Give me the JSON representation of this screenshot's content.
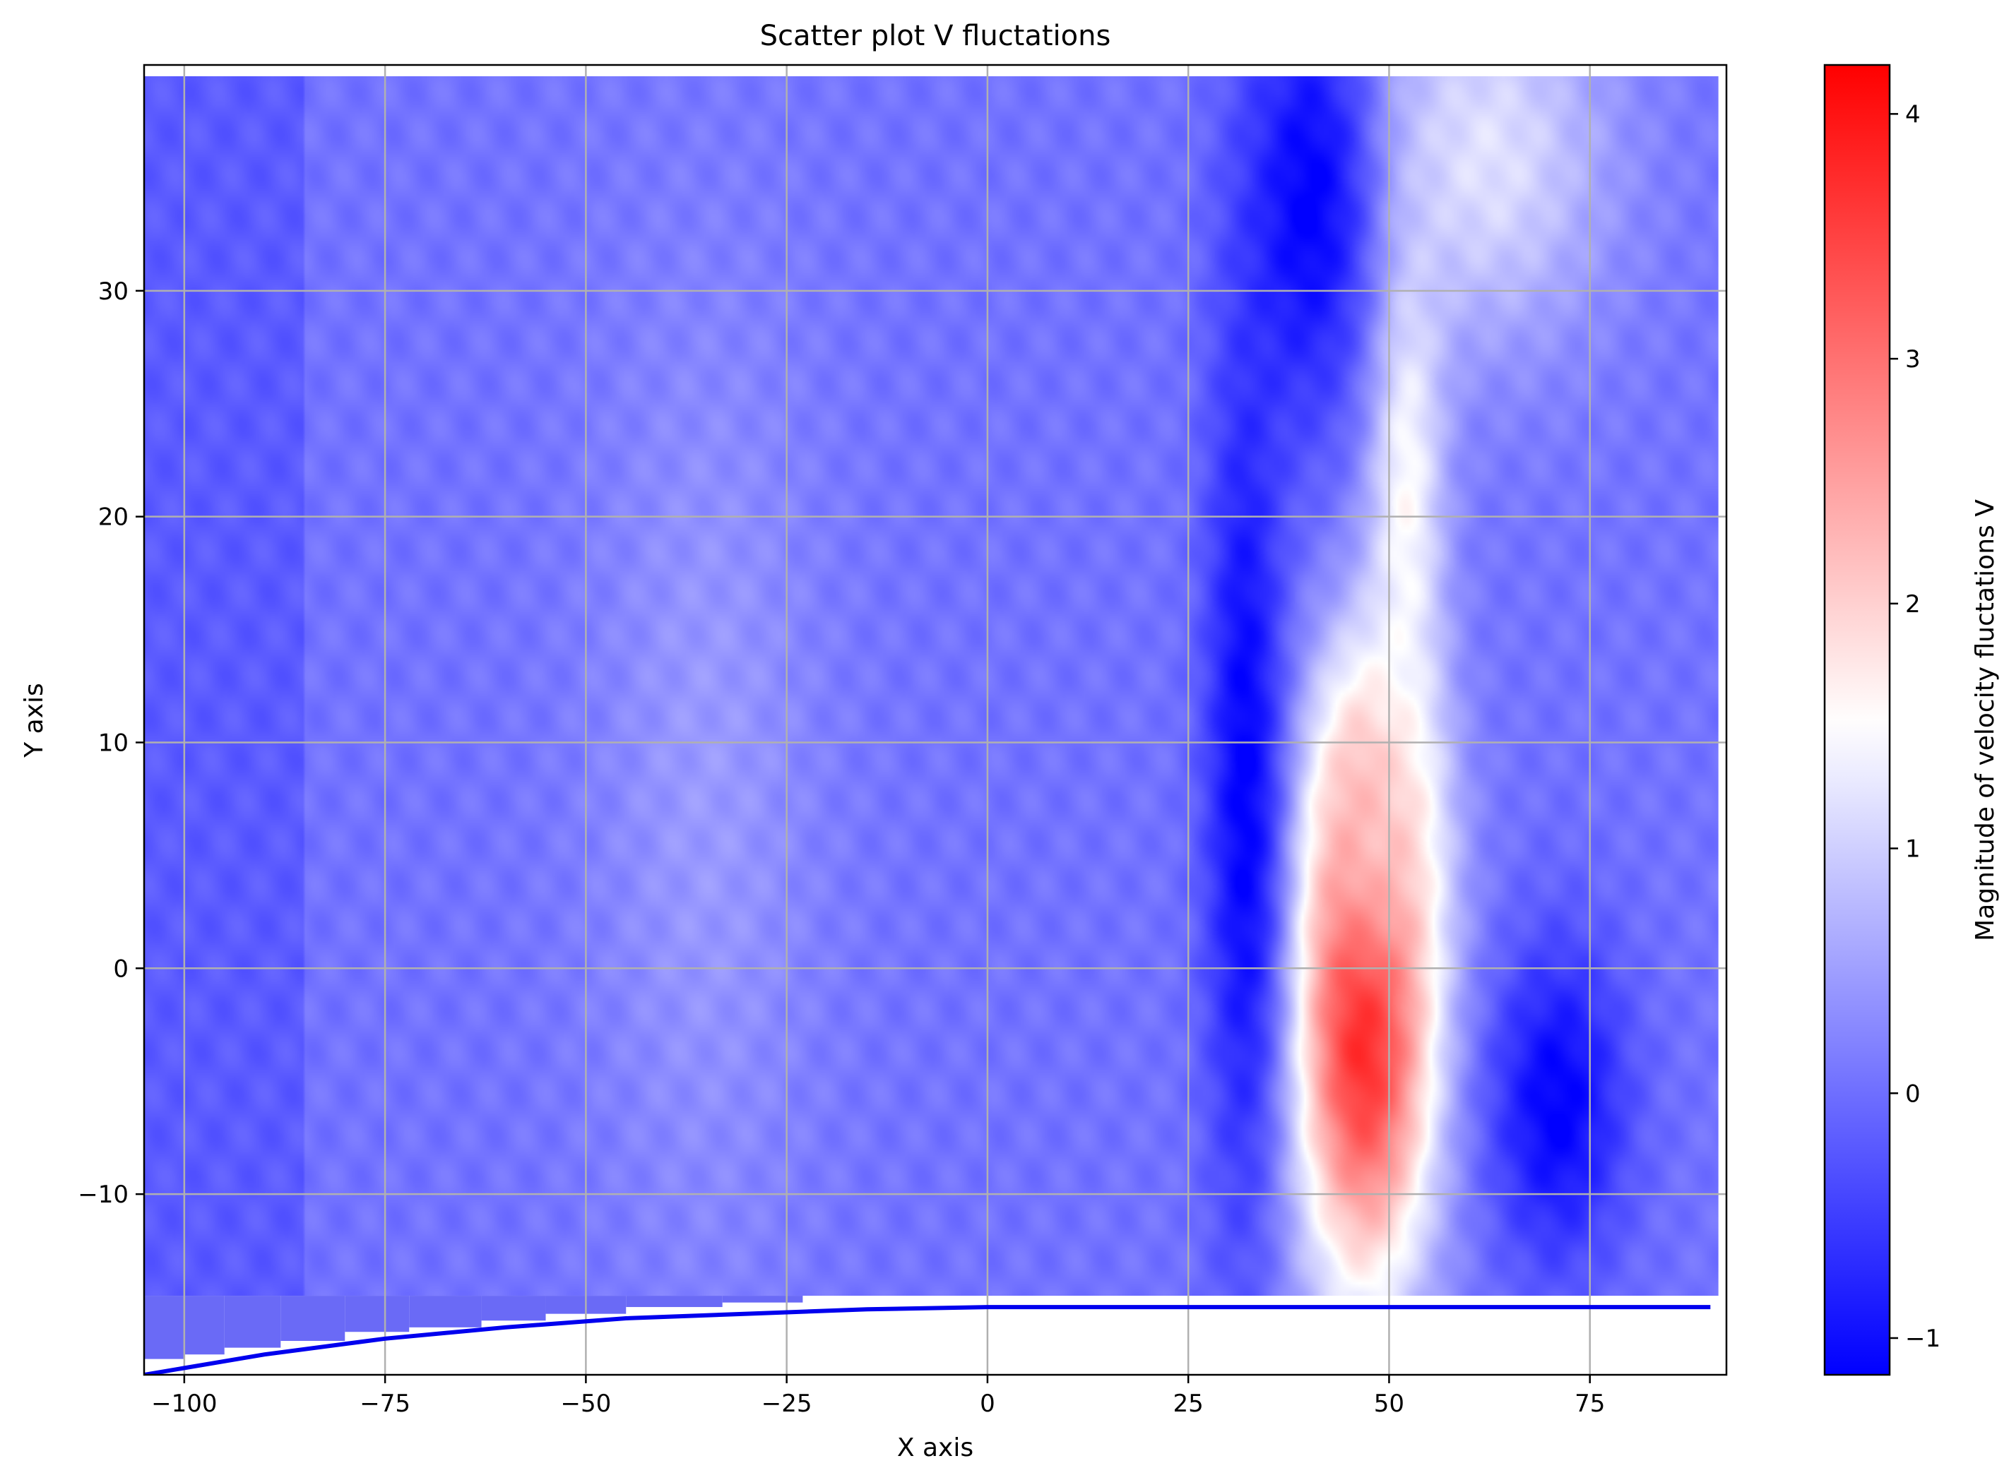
{
  "chart_data": {
    "type": "scatter",
    "title": "Scatter plot V fluctations",
    "xlabel": "X axis",
    "ylabel": "Y axis",
    "xlim": [
      -105,
      92
    ],
    "ylim": [
      -18,
      40
    ],
    "xticks": [
      -100,
      -75,
      -50,
      -25,
      0,
      25,
      50,
      75
    ],
    "yticks": [
      -10,
      0,
      10,
      20,
      30
    ],
    "xtick_labels": [
      "−100",
      "−75",
      "−50",
      "−25",
      "0",
      "25",
      "50",
      "75"
    ],
    "ytick_labels": [
      "−10",
      "0",
      "10",
      "20",
      "30"
    ],
    "grid": true,
    "colormap": "bwr",
    "colorbar": {
      "label": "Magnitude of velocity fluctations V",
      "range": [
        -1.15,
        4.2
      ],
      "ticks": [
        -1,
        0,
        1,
        2,
        3,
        4
      ],
      "tick_labels": [
        "−1",
        "0",
        "1",
        "2",
        "3",
        "4"
      ]
    },
    "field_extent": {
      "x": [
        -105,
        91
      ],
      "y_top": 39.5,
      "y_bottom": -14.5
    },
    "background_value": 0.05,
    "features": [
      {
        "name": "red core",
        "x": 47,
        "y": -2,
        "sx": 6.2,
        "sy": 8.5,
        "value": 4.0
      },
      {
        "name": "upper red core",
        "x": 48,
        "y": 7,
        "sx": 5,
        "sy": 5,
        "value": 2.3
      },
      {
        "name": "white plume",
        "x": 52,
        "y": 22,
        "sx": 3.5,
        "sy": 10,
        "value": 1.6
      },
      {
        "name": "top pale region",
        "x": 62,
        "y": 36,
        "sx": 11,
        "sy": 6,
        "value": 1.2
      },
      {
        "name": "dark blue strip left",
        "x": 32,
        "y": 8,
        "sx": 3.5,
        "sy": 14,
        "value": -1.15
      },
      {
        "name": "dark blue top",
        "x": 40,
        "y": 34,
        "sx": 6,
        "sy": 7,
        "value": -1.15
      },
      {
        "name": "dark blue lower right",
        "x": 71,
        "y": -6,
        "sx": 6,
        "sy": 5,
        "value": -1.15
      },
      {
        "name": "light wedge",
        "x": -35,
        "y": 8,
        "sx": 10,
        "sy": 16,
        "value": 0.45
      }
    ],
    "wall_curve": {
      "x": [
        -105,
        -90,
        -75,
        -60,
        -45,
        -30,
        -15,
        0,
        15,
        30,
        45,
        60,
        75,
        90
      ],
      "y": [
        -18.0,
        -17.1,
        -16.4,
        -15.9,
        -15.5,
        -15.3,
        -15.1,
        -15.0,
        -15.0,
        -15.0,
        -15.0,
        -15.0,
        -15.0,
        -15.0
      ],
      "color": "#0000ee"
    },
    "stair_steps": [
      {
        "x0": -105,
        "x1": -100,
        "y": -17.3
      },
      {
        "x0": -100,
        "x1": -95,
        "y": -17.1
      },
      {
        "x0": -95,
        "x1": -88,
        "y": -16.8
      },
      {
        "x0": -88,
        "x1": -80,
        "y": -16.5
      },
      {
        "x0": -80,
        "x1": -72,
        "y": -16.1
      },
      {
        "x0": -72,
        "x1": -63,
        "y": -15.9
      },
      {
        "x0": -63,
        "x1": -55,
        "y": -15.6
      },
      {
        "x0": -55,
        "x1": -45,
        "y": -15.3
      },
      {
        "x0": -45,
        "x1": -33,
        "y": -15.0
      },
      {
        "x0": -33,
        "x1": -23,
        "y": -14.8
      }
    ]
  }
}
